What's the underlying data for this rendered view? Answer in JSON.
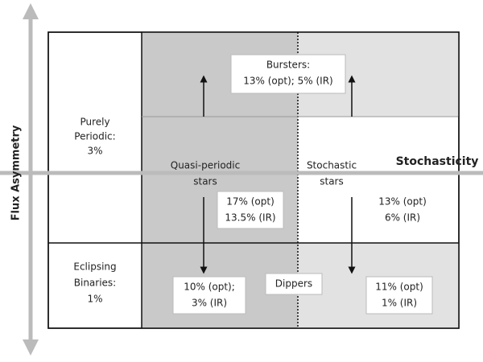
{
  "axes": {
    "y_label": "Flux Asymmetry",
    "x_label": "Stochasticity"
  },
  "cells": {
    "bursters": [
      "Bursters:",
      "13% (opt); 5% (IR)"
    ],
    "purely_periodic": [
      "Purely",
      "Periodic:",
      "3%"
    ],
    "quasi_periodic": [
      "Quasi-periodic",
      "stars"
    ],
    "stochastic": [
      "Stochastic",
      "stars"
    ],
    "quasi_periodic_pct": [
      "17% (opt)",
      "13.5% (IR)"
    ],
    "stochastic_pct": [
      "13% (opt)",
      "6% (IR)"
    ],
    "eclipsing": [
      "Eclipsing",
      "Binaries:",
      "1%"
    ],
    "dippers_left": [
      "10% (opt);",
      "3% (IR)"
    ],
    "dippers": [
      "Dippers"
    ],
    "dippers_right": [
      "11% (opt)",
      "1% (IR)"
    ]
  }
}
